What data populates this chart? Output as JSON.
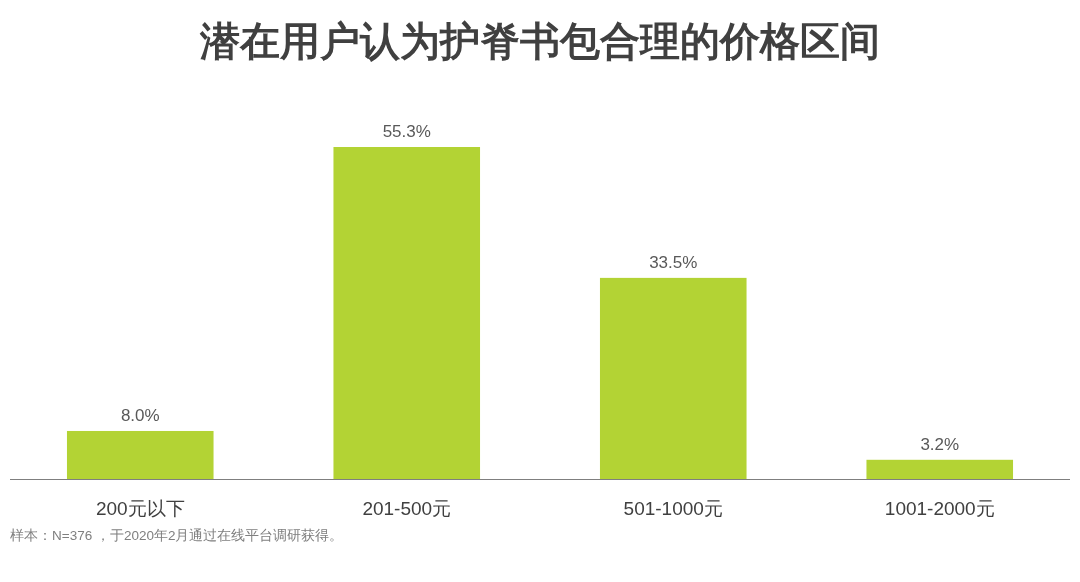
{
  "chart_data": {
    "type": "bar",
    "title": "潜在用户认为护脊书包合理的价格区间",
    "categories": [
      "200元以下",
      "201-500元",
      "501-1000元",
      "1001-2000元"
    ],
    "values": [
      8.0,
      55.3,
      33.5,
      3.2
    ],
    "value_labels": [
      "8.0%",
      "55.3%",
      "33.5%",
      "3.2%"
    ],
    "color": "#b3d334",
    "annotations": [
      "样本：N=376 ，于2020年2月通过在线平台调研获得。"
    ]
  }
}
